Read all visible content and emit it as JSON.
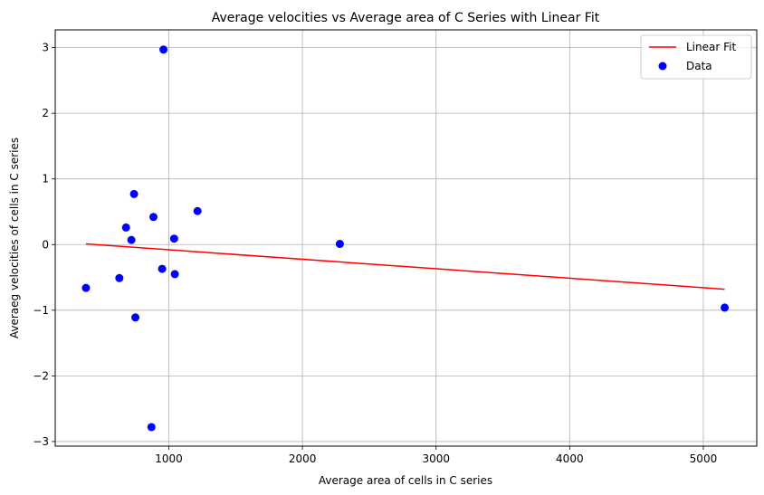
{
  "chart_data": {
    "type": "scatter",
    "title": "Average velocities vs Average area of C Series with Linear Fit",
    "xlabel": "Average area of cells in C series",
    "ylabel": "Averaeg velocities of cells in C series",
    "xlim": [
      150,
      5400
    ],
    "ylim": [
      -3.07,
      3.27
    ],
    "xticks": [
      1000,
      2000,
      3000,
      4000,
      5000
    ],
    "yticks": [
      -3,
      -2,
      -1,
      0,
      1,
      2,
      3
    ],
    "grid": true,
    "legend_position": "top-right",
    "series": [
      {
        "name": "Data",
        "kind": "scatter",
        "color": "#0000ff",
        "points": [
          {
            "x": 380,
            "y": -0.66
          },
          {
            "x": 630,
            "y": -0.51
          },
          {
            "x": 680,
            "y": 0.26
          },
          {
            "x": 720,
            "y": 0.07
          },
          {
            "x": 740,
            "y": 0.77
          },
          {
            "x": 750,
            "y": -1.11
          },
          {
            "x": 870,
            "y": -2.78
          },
          {
            "x": 885,
            "y": 0.42
          },
          {
            "x": 950,
            "y": -0.37
          },
          {
            "x": 960,
            "y": 2.97
          },
          {
            "x": 1040,
            "y": 0.09
          },
          {
            "x": 1045,
            "y": -0.45
          },
          {
            "x": 1215,
            "y": 0.51
          },
          {
            "x": 2280,
            "y": 0.01
          },
          {
            "x": 5160,
            "y": -0.96
          }
        ]
      },
      {
        "name": "Linear Fit",
        "kind": "line",
        "color": "#ff0000",
        "points": [
          {
            "x": 380,
            "y": 0.01
          },
          {
            "x": 5160,
            "y": -0.68
          }
        ]
      }
    ]
  }
}
